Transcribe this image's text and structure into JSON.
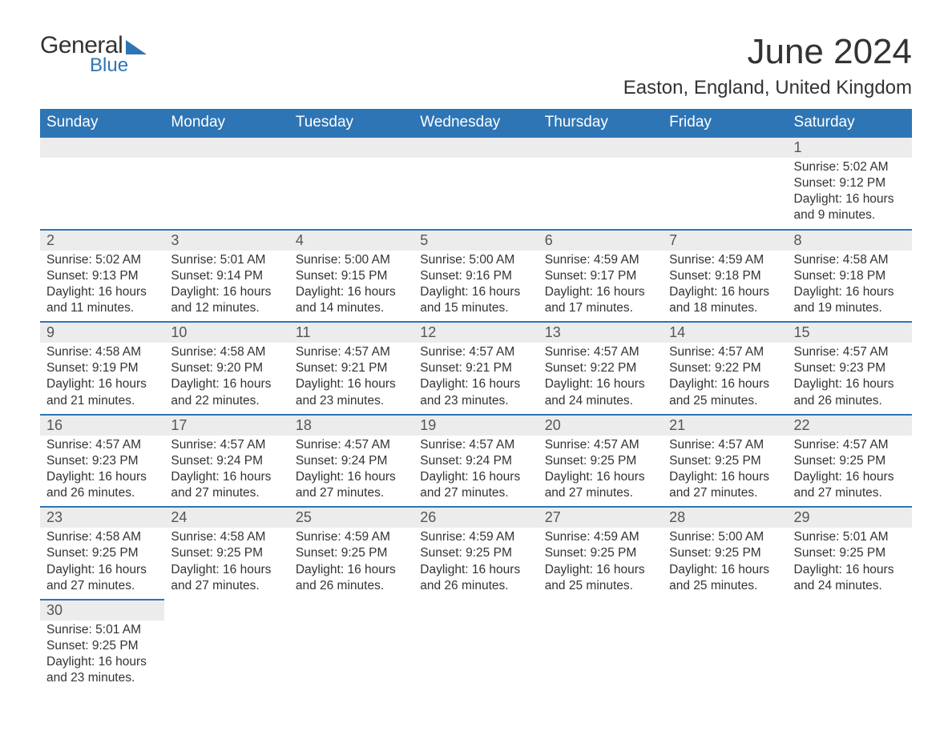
{
  "logo": {
    "text1": "General",
    "text2": "Blue"
  },
  "title": "June 2024",
  "location": "Easton, England, United Kingdom",
  "colors": {
    "header_bg": "#2e75b6",
    "header_text": "#ffffff",
    "daynum_bg": "#ececec",
    "row_border": "#2e75b6",
    "body_text": "#333333",
    "logo_accent": "#2e75b6"
  },
  "typography": {
    "title_fontsize": 44,
    "location_fontsize": 24,
    "dayheader_fontsize": 19,
    "daynum_fontsize": 18,
    "detail_fontsize": 15.5
  },
  "day_headers": [
    "Sunday",
    "Monday",
    "Tuesday",
    "Wednesday",
    "Thursday",
    "Friday",
    "Saturday"
  ],
  "weeks": [
    [
      null,
      null,
      null,
      null,
      null,
      null,
      {
        "n": "1",
        "sr": "Sunrise: 5:02 AM",
        "ss": "Sunset: 9:12 PM",
        "d1": "Daylight: 16 hours",
        "d2": "and 9 minutes."
      }
    ],
    [
      {
        "n": "2",
        "sr": "Sunrise: 5:02 AM",
        "ss": "Sunset: 9:13 PM",
        "d1": "Daylight: 16 hours",
        "d2": "and 11 minutes."
      },
      {
        "n": "3",
        "sr": "Sunrise: 5:01 AM",
        "ss": "Sunset: 9:14 PM",
        "d1": "Daylight: 16 hours",
        "d2": "and 12 minutes."
      },
      {
        "n": "4",
        "sr": "Sunrise: 5:00 AM",
        "ss": "Sunset: 9:15 PM",
        "d1": "Daylight: 16 hours",
        "d2": "and 14 minutes."
      },
      {
        "n": "5",
        "sr": "Sunrise: 5:00 AM",
        "ss": "Sunset: 9:16 PM",
        "d1": "Daylight: 16 hours",
        "d2": "and 15 minutes."
      },
      {
        "n": "6",
        "sr": "Sunrise: 4:59 AM",
        "ss": "Sunset: 9:17 PM",
        "d1": "Daylight: 16 hours",
        "d2": "and 17 minutes."
      },
      {
        "n": "7",
        "sr": "Sunrise: 4:59 AM",
        "ss": "Sunset: 9:18 PM",
        "d1": "Daylight: 16 hours",
        "d2": "and 18 minutes."
      },
      {
        "n": "8",
        "sr": "Sunrise: 4:58 AM",
        "ss": "Sunset: 9:18 PM",
        "d1": "Daylight: 16 hours",
        "d2": "and 19 minutes."
      }
    ],
    [
      {
        "n": "9",
        "sr": "Sunrise: 4:58 AM",
        "ss": "Sunset: 9:19 PM",
        "d1": "Daylight: 16 hours",
        "d2": "and 21 minutes."
      },
      {
        "n": "10",
        "sr": "Sunrise: 4:58 AM",
        "ss": "Sunset: 9:20 PM",
        "d1": "Daylight: 16 hours",
        "d2": "and 22 minutes."
      },
      {
        "n": "11",
        "sr": "Sunrise: 4:57 AM",
        "ss": "Sunset: 9:21 PM",
        "d1": "Daylight: 16 hours",
        "d2": "and 23 minutes."
      },
      {
        "n": "12",
        "sr": "Sunrise: 4:57 AM",
        "ss": "Sunset: 9:21 PM",
        "d1": "Daylight: 16 hours",
        "d2": "and 23 minutes."
      },
      {
        "n": "13",
        "sr": "Sunrise: 4:57 AM",
        "ss": "Sunset: 9:22 PM",
        "d1": "Daylight: 16 hours",
        "d2": "and 24 minutes."
      },
      {
        "n": "14",
        "sr": "Sunrise: 4:57 AM",
        "ss": "Sunset: 9:22 PM",
        "d1": "Daylight: 16 hours",
        "d2": "and 25 minutes."
      },
      {
        "n": "15",
        "sr": "Sunrise: 4:57 AM",
        "ss": "Sunset: 9:23 PM",
        "d1": "Daylight: 16 hours",
        "d2": "and 26 minutes."
      }
    ],
    [
      {
        "n": "16",
        "sr": "Sunrise: 4:57 AM",
        "ss": "Sunset: 9:23 PM",
        "d1": "Daylight: 16 hours",
        "d2": "and 26 minutes."
      },
      {
        "n": "17",
        "sr": "Sunrise: 4:57 AM",
        "ss": "Sunset: 9:24 PM",
        "d1": "Daylight: 16 hours",
        "d2": "and 27 minutes."
      },
      {
        "n": "18",
        "sr": "Sunrise: 4:57 AM",
        "ss": "Sunset: 9:24 PM",
        "d1": "Daylight: 16 hours",
        "d2": "and 27 minutes."
      },
      {
        "n": "19",
        "sr": "Sunrise: 4:57 AM",
        "ss": "Sunset: 9:24 PM",
        "d1": "Daylight: 16 hours",
        "d2": "and 27 minutes."
      },
      {
        "n": "20",
        "sr": "Sunrise: 4:57 AM",
        "ss": "Sunset: 9:25 PM",
        "d1": "Daylight: 16 hours",
        "d2": "and 27 minutes."
      },
      {
        "n": "21",
        "sr": "Sunrise: 4:57 AM",
        "ss": "Sunset: 9:25 PM",
        "d1": "Daylight: 16 hours",
        "d2": "and 27 minutes."
      },
      {
        "n": "22",
        "sr": "Sunrise: 4:57 AM",
        "ss": "Sunset: 9:25 PM",
        "d1": "Daylight: 16 hours",
        "d2": "and 27 minutes."
      }
    ],
    [
      {
        "n": "23",
        "sr": "Sunrise: 4:58 AM",
        "ss": "Sunset: 9:25 PM",
        "d1": "Daylight: 16 hours",
        "d2": "and 27 minutes."
      },
      {
        "n": "24",
        "sr": "Sunrise: 4:58 AM",
        "ss": "Sunset: 9:25 PM",
        "d1": "Daylight: 16 hours",
        "d2": "and 27 minutes."
      },
      {
        "n": "25",
        "sr": "Sunrise: 4:59 AM",
        "ss": "Sunset: 9:25 PM",
        "d1": "Daylight: 16 hours",
        "d2": "and 26 minutes."
      },
      {
        "n": "26",
        "sr": "Sunrise: 4:59 AM",
        "ss": "Sunset: 9:25 PM",
        "d1": "Daylight: 16 hours",
        "d2": "and 26 minutes."
      },
      {
        "n": "27",
        "sr": "Sunrise: 4:59 AM",
        "ss": "Sunset: 9:25 PM",
        "d1": "Daylight: 16 hours",
        "d2": "and 25 minutes."
      },
      {
        "n": "28",
        "sr": "Sunrise: 5:00 AM",
        "ss": "Sunset: 9:25 PM",
        "d1": "Daylight: 16 hours",
        "d2": "and 25 minutes."
      },
      {
        "n": "29",
        "sr": "Sunrise: 5:01 AM",
        "ss": "Sunset: 9:25 PM",
        "d1": "Daylight: 16 hours",
        "d2": "and 24 minutes."
      }
    ],
    [
      {
        "n": "30",
        "sr": "Sunrise: 5:01 AM",
        "ss": "Sunset: 9:25 PM",
        "d1": "Daylight: 16 hours",
        "d2": "and 23 minutes."
      },
      null,
      null,
      null,
      null,
      null,
      null
    ]
  ]
}
